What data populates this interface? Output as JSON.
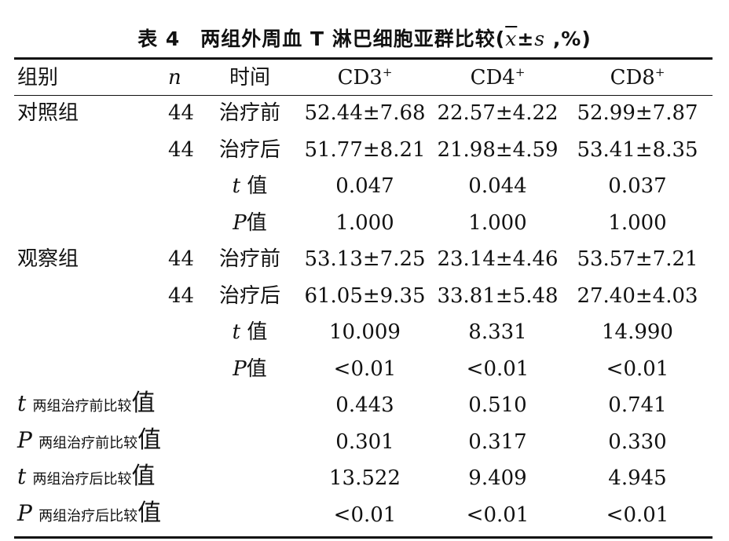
{
  "caption": {
    "prefix": "表 4　两组外周血 T 淋巴细胞亚群比较(",
    "mean_symbol": "x",
    "pm": "±",
    "sd_symbol": "s",
    "suffix": " ,%)"
  },
  "header": {
    "group": "组别",
    "n": "n",
    "time": "时间",
    "cd3": "CD3",
    "cd4": "CD4",
    "cd8": "CD8",
    "plus": "+"
  },
  "labels": {
    "value_suffix": "值",
    "t": "t",
    "p": "P",
    "between_before": "两组治疗前比较",
    "between_after": "两组治疗后比较"
  },
  "control": {
    "name": "对照组",
    "before": {
      "n": "44",
      "time": "治疗前",
      "cd3": "52.44±7.68",
      "cd4": "22.57±4.22",
      "cd8": "52.99±7.87"
    },
    "after": {
      "n": "44",
      "time": "治疗后",
      "cd3": "51.77±8.21",
      "cd4": "21.98±4.59",
      "cd8": "53.41±8.35"
    },
    "t": {
      "cd3": "0.047",
      "cd4": "0.044",
      "cd8": "0.037"
    },
    "p": {
      "cd3": "1.000",
      "cd4": "1.000",
      "cd8": "1.000"
    }
  },
  "observation": {
    "name": "观察组",
    "before": {
      "n": "44",
      "time": "治疗前",
      "cd3": "53.13±7.25",
      "cd4": "23.14±4.46",
      "cd8": "53.57±7.21"
    },
    "after": {
      "n": "44",
      "time": "治疗后",
      "cd3": "61.05±9.35",
      "cd4": "33.81±5.48",
      "cd8": "27.40±4.03"
    },
    "t": {
      "cd3": "10.009",
      "cd4": "8.331",
      "cd8": "14.990"
    },
    "p": {
      "cd3": "<0.01",
      "cd4": "<0.01",
      "cd8": "<0.01"
    }
  },
  "between_before": {
    "t": {
      "cd3": "0.443",
      "cd4": "0.510",
      "cd8": "0.741"
    },
    "p": {
      "cd3": "0.301",
      "cd4": "0.317",
      "cd8": "0.330"
    }
  },
  "between_after": {
    "t": {
      "cd3": "13.522",
      "cd4": "9.409",
      "cd8": "4.945"
    },
    "p": {
      "cd3": "<0.01",
      "cd4": "<0.01",
      "cd8": "<0.01"
    }
  }
}
